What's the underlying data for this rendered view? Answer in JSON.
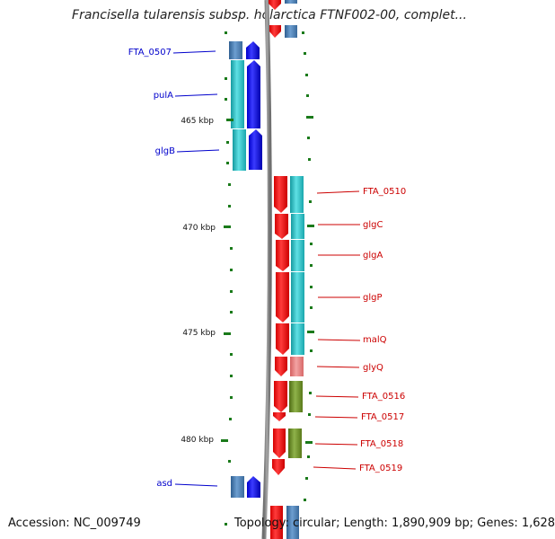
{
  "title": "Francisella tularensis subsp. holarctica FTNF002-00, complet...",
  "footer": {
    "accession": "Accession: NC_009749",
    "summary": "Topology: circular; Length: 1,890,909 bp; Genes: 1,628"
  },
  "colors": {
    "cds_forward": "#0000ff",
    "cds_reverse": "#ff0000",
    "cog_forward_steel": "#4a7fb3",
    "cog_cyan": "#29c4c9",
    "cog_pink": "#e87a7a",
    "cog_olive": "#6b8e23",
    "backbone": "#8c8c8c",
    "ticks": "#1a7a1a",
    "label_forward": "#0000cc",
    "label_reverse": "#cc0000"
  },
  "tick_labels": [
    "465 kbp",
    "470 kbp",
    "475 kbp",
    "480 kbp"
  ],
  "gene_labels_forward": [
    "FTA_0507",
    "pulA",
    "glgB",
    "asd"
  ],
  "gene_labels_reverse": [
    "FTA_0510",
    "glgC",
    "glgA",
    "glgP",
    "malQ",
    "glyQ",
    "FTA_0516",
    "FTA_0517",
    "FTA_0518",
    "FTA_0519"
  ]
}
